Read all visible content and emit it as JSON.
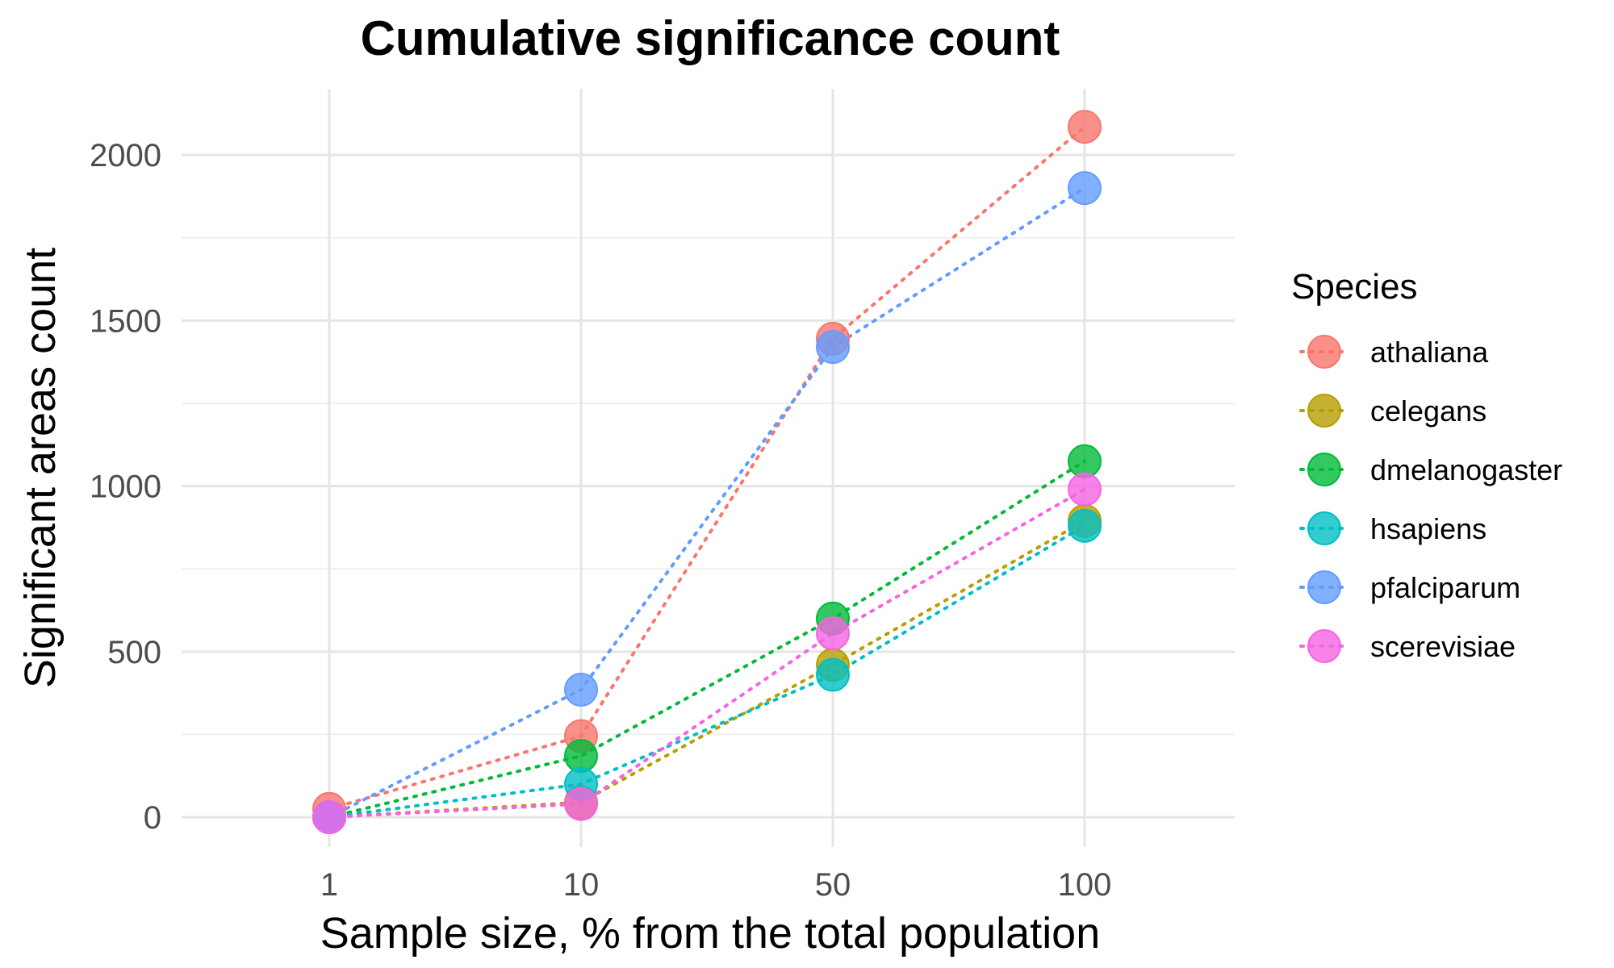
{
  "chart_data": {
    "type": "line",
    "title": "Cumulative significance count",
    "xlabel": "Sample size, % from the total population",
    "ylabel": "Significant areas count",
    "categories": [
      "1",
      "10",
      "50",
      "100"
    ],
    "ylim": [
      -90,
      2200
    ],
    "yticks": [
      0,
      500,
      1000,
      1500,
      2000
    ],
    "grid": true,
    "line_style": "dotted",
    "legend": {
      "title": "Species",
      "position": "right"
    },
    "series": [
      {
        "name": "athaliana",
        "color": "#F8766D",
        "values": [
          25,
          245,
          1445,
          2085
        ]
      },
      {
        "name": "celegans",
        "color": "#B79F00",
        "values": [
          0,
          45,
          460,
          895
        ]
      },
      {
        "name": "dmelanogaster",
        "color": "#00BA38",
        "values": [
          0,
          185,
          600,
          1075
        ]
      },
      {
        "name": "hsapiens",
        "color": "#00BFC4",
        "values": [
          0,
          100,
          430,
          880
        ]
      },
      {
        "name": "pfalciparum",
        "color": "#619CFF",
        "values": [
          0,
          385,
          1420,
          1900
        ]
      },
      {
        "name": "scerevisiae",
        "color": "#F564E3",
        "values": [
          0,
          40,
          555,
          990
        ]
      }
    ]
  }
}
